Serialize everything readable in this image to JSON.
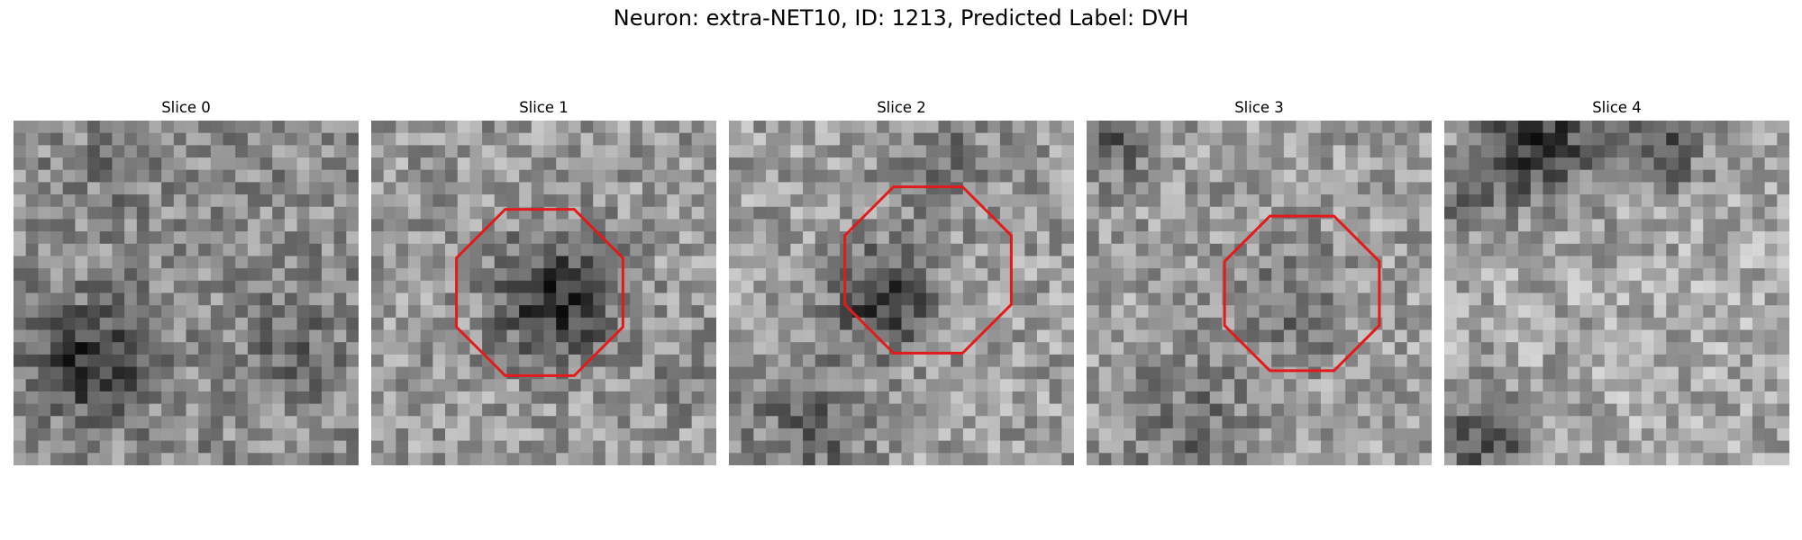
{
  "figure": {
    "title": "Neuron: extra-NET10, ID: 1213, Predicted Label: DVH",
    "annotation_color": "#e31a1c"
  },
  "slices": [
    {
      "title": "Slice 0",
      "roi": false,
      "dark_blob": "lower-left"
    },
    {
      "title": "Slice 1",
      "roi": true,
      "dark_blob": "center"
    },
    {
      "title": "Slice 2",
      "roi": true,
      "dark_blob": "center-left"
    },
    {
      "title": "Slice 3",
      "roi": true,
      "dark_blob": "center-faint"
    },
    {
      "title": "Slice 4",
      "roi": false,
      "dark_blob": "top-band"
    }
  ]
}
